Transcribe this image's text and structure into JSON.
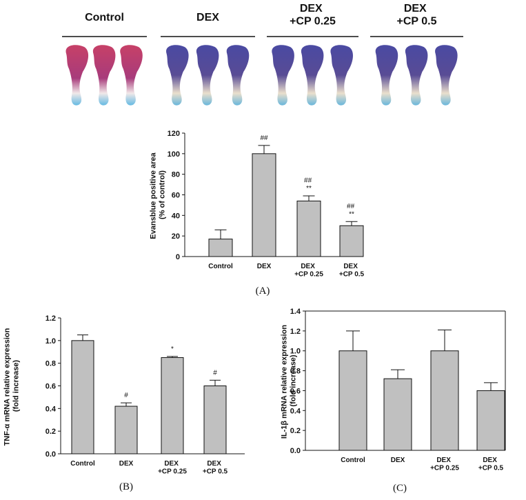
{
  "photo_groups": [
    "Control",
    "DEX",
    "DEX\n+CP 0.25",
    "DEX\n+CP 0.5"
  ],
  "chart_data": [
    {
      "type": "bar",
      "panel_label": "(A)",
      "y_label": "Evansblue positive area\n(% of control)",
      "categories": [
        "Control",
        "DEX",
        "DEX\n+CP 0.25",
        "DEX\n+CP 0.5"
      ],
      "values": [
        17,
        100,
        54,
        30
      ],
      "errors": [
        9,
        8,
        5,
        4
      ],
      "annotations": [
        null,
        "##",
        "##\n**",
        "##\n**"
      ],
      "color": "#c0c0c0",
      "ylim": [
        0,
        120
      ],
      "yticks": [
        0,
        20,
        40,
        60,
        80,
        100,
        120
      ],
      "frame": false
    },
    {
      "type": "bar",
      "panel_label": "(B)",
      "y_label": "TNF-α mRNA relative expression\n(fold increase)",
      "categories": [
        "Control",
        "DEX",
        "DEX\n+CP 0.25",
        "DEX\n+CP 0.5"
      ],
      "values": [
        1.0,
        0.42,
        0.85,
        0.6
      ],
      "errors": [
        0.05,
        0.03,
        0.01,
        0.05
      ],
      "annotations": [
        null,
        "#",
        "*",
        "#"
      ],
      "color": "#c0c0c0",
      "ylim": [
        0,
        1.2
      ],
      "yticks": [
        {
          "value": 0,
          "label": "0.0"
        },
        0.2,
        0.4,
        0.6,
        0.8,
        {
          "value": 1,
          "label": "1.0"
        },
        1.2
      ],
      "frame": false
    },
    {
      "type": "bar",
      "panel_label": "(C)",
      "y_label": "IL-1β mRNA relative expression\n(fold increase)",
      "categories": [
        "Control",
        "DEX",
        "DEX\n+CP 0.25",
        "DEX\n+CP 0.5"
      ],
      "values": [
        1.0,
        0.72,
        1.0,
        0.6
      ],
      "errors": [
        0.2,
        0.09,
        0.21,
        0.08
      ],
      "annotations": [
        null,
        null,
        null,
        null
      ],
      "color": "#c0c0c0",
      "ylim": [
        0,
        1.4
      ],
      "yticks": [
        {
          "value": 0,
          "label": "0.0"
        },
        0.2,
        0.4,
        0.6,
        0.8,
        {
          "value": 1,
          "label": "1.0"
        },
        1.2,
        1.4
      ],
      "frame": true
    }
  ]
}
